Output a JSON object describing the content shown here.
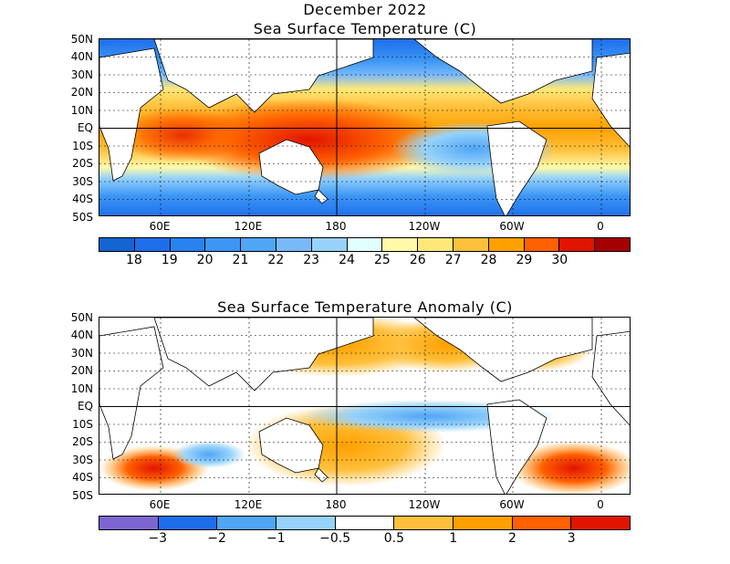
{
  "top_panel": {
    "title_line1": "December 2022",
    "title_line2": "Sea Surface Temperature (C)",
    "lat_labels": [
      "50N",
      "40N",
      "30N",
      "20N",
      "10N",
      "EQ",
      "10S",
      "20S",
      "30S",
      "40S",
      "50S"
    ],
    "lon_labels": [
      "60E",
      "120E",
      "180",
      "120W",
      "60W",
      "0"
    ],
    "colorbar": {
      "colors": [
        "#1464d2",
        "#1e6eeb",
        "#2882f0",
        "#3c96f5",
        "#50a5f5",
        "#78b9fa",
        "#96d2fa",
        "#e1ffff",
        "#fffaaa",
        "#ffe878",
        "#ffc03c",
        "#ffa000",
        "#ff6000",
        "#e11400",
        "#a50000"
      ],
      "labels": [
        "18",
        "19",
        "20",
        "21",
        "22",
        "23",
        "24",
        "25",
        "26",
        "27",
        "28",
        "29",
        "30"
      ]
    }
  },
  "bottom_panel": {
    "title": "Sea Surface Temperature Anomaly (C)",
    "lat_labels": [
      "50N",
      "40N",
      "30N",
      "20N",
      "10N",
      "EQ",
      "10S",
      "20S",
      "30S",
      "40S",
      "50S"
    ],
    "lon_labels": [
      "60E",
      "120E",
      "180",
      "120W",
      "60W",
      "0"
    ],
    "colorbar": {
      "colors": [
        "#7d66d2",
        "#1e6eeb",
        "#50a5f5",
        "#96d2fa",
        "#ffffff",
        "#ffc03c",
        "#ffa000",
        "#ff6000",
        "#e11400"
      ],
      "labels": [
        "−3",
        "−2",
        "−1",
        "−0.5",
        "0.5",
        "1",
        "2",
        "3"
      ]
    }
  }
}
